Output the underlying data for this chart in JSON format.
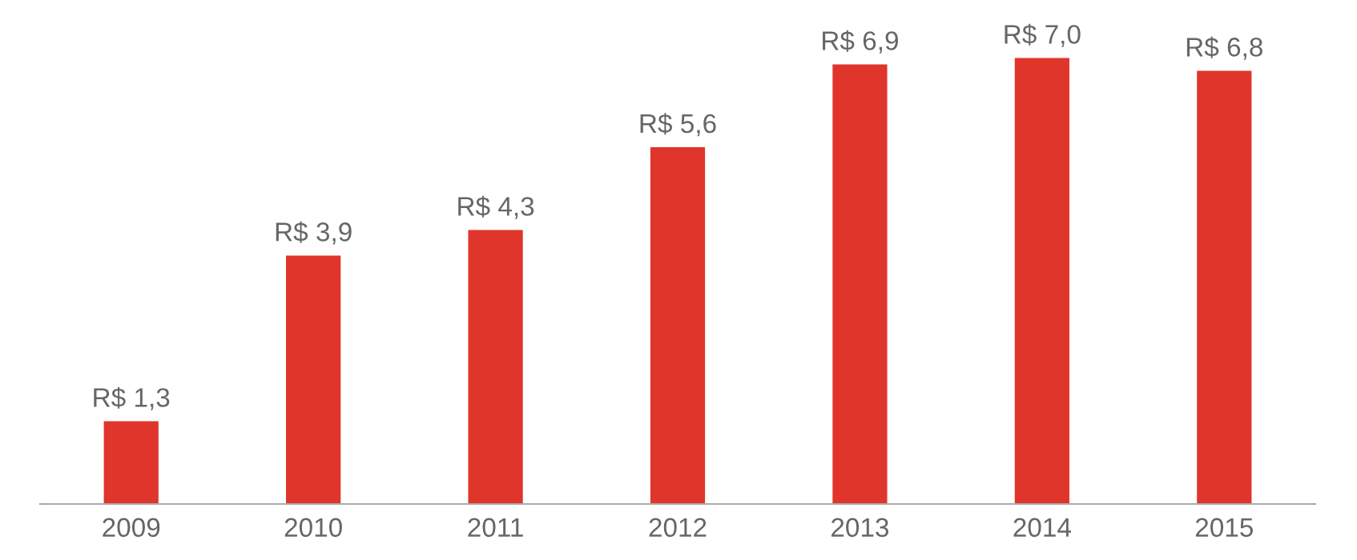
{
  "chart_data": {
    "type": "bar",
    "categories": [
      "2009",
      "2010",
      "2011",
      "2012",
      "2013",
      "2014",
      "2015"
    ],
    "values": [
      1.3,
      3.9,
      4.3,
      5.6,
      6.9,
      7.0,
      6.8
    ],
    "value_labels": [
      "R$ 1,3",
      "R$ 3,9",
      "R$ 4,3",
      "R$ 5,6",
      "R$ 6,9",
      "R$ 7,0",
      "R$ 6,8"
    ],
    "color": "#e0352b",
    "tick_labels": "x",
    "grid": false
  }
}
